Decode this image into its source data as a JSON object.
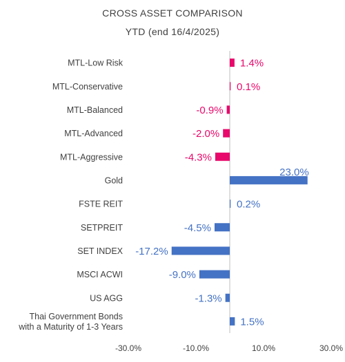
{
  "chart_data": {
    "type": "bar",
    "orientation": "horizontal",
    "title": "CROSS ASSET COMPARISON",
    "subtitle": "YTD (end 16/4/2025)",
    "categories": [
      "MTL-Low Risk",
      "MTL-Conservative",
      "MTL-Balanced",
      "MTL-Advanced",
      "MTL-Aggressive",
      "Gold",
      "FSTE REIT",
      "SETPREIT",
      "SET INDEX",
      "MSCI ACWI",
      "US AGG",
      "Thai Government Bonds with a Maturity of 1-3 Years"
    ],
    "category_lines": [
      [
        "MTL-Low Risk"
      ],
      [
        "MTL-Conservative"
      ],
      [
        "MTL-Balanced"
      ],
      [
        "MTL-Advanced"
      ],
      [
        "MTL-Aggressive"
      ],
      [
        "Gold"
      ],
      [
        "FSTE REIT"
      ],
      [
        "SETPREIT"
      ],
      [
        "SET INDEX"
      ],
      [
        "MSCI ACWI"
      ],
      [
        "US AGG"
      ],
      [
        "Thai Government Bonds",
        "with a Maturity of 1-3 Years"
      ]
    ],
    "values": [
      1.4,
      0.1,
      -0.9,
      -2.0,
      -4.3,
      23.0,
      0.2,
      -4.5,
      -17.2,
      -9.0,
      -1.3,
      1.5
    ],
    "data_labels": [
      "1.4%",
      "0.1%",
      "-0.9%",
      "-2.0%",
      "-4.3%",
      "23.0%",
      "0.2%",
      "-4.5%",
      "-17.2%",
      "-9.0%",
      "-1.3%",
      "1.5%"
    ],
    "colors": [
      "#e8086b",
      "#e8086b",
      "#e8086b",
      "#e8086b",
      "#e8086b",
      "#4472c4",
      "#4472c4",
      "#4472c4",
      "#4472c4",
      "#4472c4",
      "#4472c4",
      "#4472c4"
    ],
    "xlim": [
      -30,
      30
    ],
    "xticks": [
      -30,
      -10,
      10,
      30
    ],
    "xtick_labels": [
      "-30.0%",
      "-10.0%",
      "10.0%",
      "30.0%"
    ],
    "grid": false,
    "legend": "none"
  },
  "colors": {
    "mtl": "#e8086b",
    "asset": "#4472c4",
    "text": "#404040",
    "axis": "#bfbfbf"
  }
}
